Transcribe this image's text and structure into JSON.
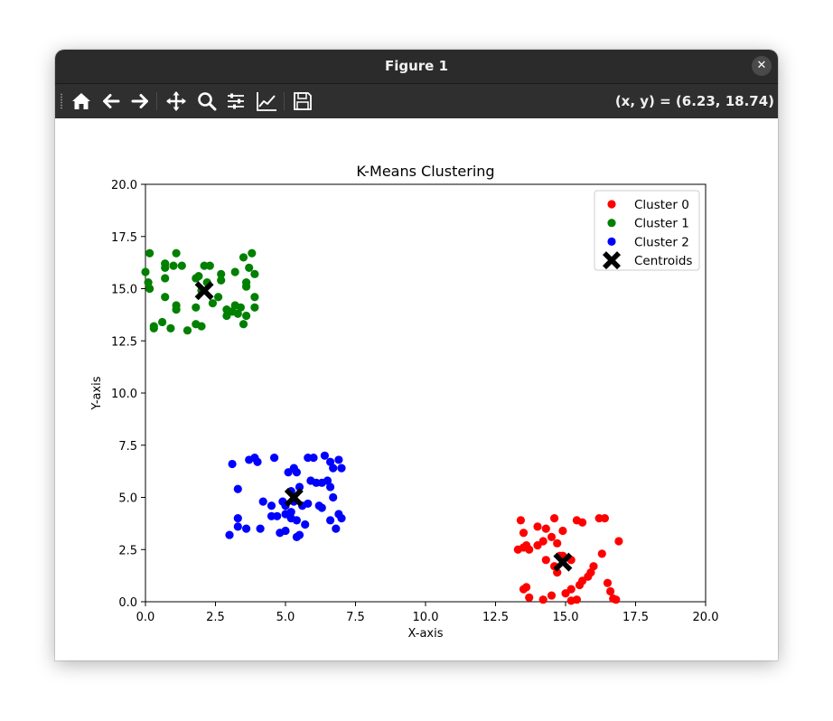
{
  "window": {
    "title": "Figure 1",
    "close_glyph": "✕"
  },
  "toolbar": {
    "tools": [
      {
        "name": "home-icon"
      },
      {
        "name": "back-arrow-icon"
      },
      {
        "name": "forward-arrow-icon"
      },
      {
        "name": "pan-icon"
      },
      {
        "name": "zoom-icon"
      },
      {
        "name": "configure-subplots-icon"
      },
      {
        "name": "edit-axis-icon"
      },
      {
        "name": "save-icon"
      }
    ],
    "coords": "(x, y) = (6.23, 18.74)"
  },
  "chart_data": {
    "type": "scatter",
    "title": "K-Means Clustering",
    "xlabel": "X-axis",
    "ylabel": "Y-axis",
    "xlim": [
      0,
      20
    ],
    "ylim": [
      0,
      20
    ],
    "xticks": [
      0,
      2.5,
      5,
      7.5,
      10,
      12.5,
      15,
      17.5,
      20
    ],
    "yticks": [
      0,
      2.5,
      5,
      7.5,
      10,
      12.5,
      15,
      17.5,
      20
    ],
    "xtick_labels": [
      "0.0",
      "2.5",
      "5.0",
      "7.5",
      "10.0",
      "12.5",
      "15.0",
      "17.5",
      "20.0"
    ],
    "ytick_labels": [
      "0.0",
      "2.5",
      "5.0",
      "7.5",
      "10.0",
      "12.5",
      "15.0",
      "17.5",
      "20.0"
    ],
    "grid": false,
    "legend_position": "top-right",
    "series": [
      {
        "name": "Cluster 0",
        "color": "#ff0000",
        "marker": "circle",
        "points": [
          [
            13.4,
            3.9
          ],
          [
            13.5,
            3.3
          ],
          [
            14.0,
            3.6
          ],
          [
            14.3,
            3.5
          ],
          [
            14.6,
            4.0
          ],
          [
            14.9,
            3.4
          ],
          [
            13.3,
            2.5
          ],
          [
            13.5,
            2.6
          ],
          [
            13.7,
            2.5
          ],
          [
            14.2,
            2.9
          ],
          [
            14.5,
            3.1
          ],
          [
            14.7,
            2.8
          ],
          [
            15.4,
            3.9
          ],
          [
            15.6,
            3.8
          ],
          [
            16.2,
            4.0
          ],
          [
            16.4,
            4.0
          ],
          [
            16.3,
            2.3
          ],
          [
            16.9,
            2.9
          ],
          [
            14.0,
            2.7
          ],
          [
            14.3,
            2.0
          ],
          [
            14.8,
            2.2
          ],
          [
            14.6,
            1.7
          ],
          [
            14.7,
            1.4
          ],
          [
            15.2,
            2.0
          ],
          [
            15.6,
            1.0
          ],
          [
            15.8,
            1.2
          ],
          [
            15.9,
            1.4
          ],
          [
            16.0,
            1.7
          ],
          [
            16.5,
            0.9
          ],
          [
            16.6,
            0.5
          ],
          [
            16.7,
            0.15
          ],
          [
            16.8,
            0.1
          ],
          [
            15.2,
            0.6
          ],
          [
            15.0,
            0.4
          ],
          [
            15.4,
            0.1
          ],
          [
            15.2,
            0.05
          ],
          [
            14.5,
            0.3
          ],
          [
            14.2,
            0.1
          ],
          [
            13.7,
            0.2
          ],
          [
            13.6,
            0.7
          ],
          [
            13.5,
            0.6
          ],
          [
            15.5,
            0.8
          ],
          [
            14.9,
            2.2
          ],
          [
            13.6,
            2.7
          ]
        ]
      },
      {
        "name": "Cluster 1",
        "color": "#008000",
        "marker": "circle",
        "points": [
          [
            0.15,
            16.7
          ],
          [
            0.0,
            15.8
          ],
          [
            0.1,
            15.3
          ],
          [
            0.15,
            15.0
          ],
          [
            0.7,
            16.2
          ],
          [
            0.7,
            16.0
          ],
          [
            1.0,
            16.1
          ],
          [
            1.3,
            16.1
          ],
          [
            1.1,
            16.7
          ],
          [
            0.7,
            15.5
          ],
          [
            1.8,
            15.5
          ],
          [
            1.9,
            15.6
          ],
          [
            2.1,
            16.1
          ],
          [
            2.3,
            16.1
          ],
          [
            2.7,
            15.7
          ],
          [
            2.7,
            15.4
          ],
          [
            2.2,
            15.3
          ],
          [
            2.0,
            14.9
          ],
          [
            2.6,
            14.6
          ],
          [
            2.4,
            14.3
          ],
          [
            1.1,
            14.2
          ],
          [
            1.1,
            14.0
          ],
          [
            0.7,
            14.6
          ],
          [
            0.6,
            13.4
          ],
          [
            0.3,
            13.2
          ],
          [
            0.3,
            13.1
          ],
          [
            0.9,
            13.1
          ],
          [
            1.8,
            13.3
          ],
          [
            1.5,
            13.0
          ],
          [
            2.0,
            13.2
          ],
          [
            1.8,
            14.1
          ],
          [
            3.2,
            15.8
          ],
          [
            3.5,
            16.5
          ],
          [
            3.8,
            16.7
          ],
          [
            3.7,
            16.0
          ],
          [
            3.9,
            15.7
          ],
          [
            3.6,
            15.3
          ],
          [
            3.6,
            15.1
          ],
          [
            3.4,
            14.1
          ],
          [
            3.3,
            13.8
          ],
          [
            3.1,
            13.9
          ],
          [
            3.0,
            13.9
          ],
          [
            2.9,
            14.0
          ],
          [
            2.9,
            13.7
          ],
          [
            3.5,
            13.3
          ],
          [
            3.6,
            13.7
          ],
          [
            3.9,
            14.1
          ],
          [
            3.9,
            14.6
          ],
          [
            3.2,
            14.2
          ]
        ]
      },
      {
        "name": "Cluster 2",
        "color": "#0000ff",
        "marker": "circle",
        "points": [
          [
            3.1,
            6.6
          ],
          [
            3.7,
            6.8
          ],
          [
            3.9,
            6.9
          ],
          [
            4.0,
            6.7
          ],
          [
            4.6,
            6.9
          ],
          [
            5.1,
            6.2
          ],
          [
            5.3,
            6.4
          ],
          [
            5.4,
            6.2
          ],
          [
            5.8,
            6.9
          ],
          [
            6.0,
            6.9
          ],
          [
            6.4,
            7.0
          ],
          [
            6.6,
            6.7
          ],
          [
            6.7,
            6.4
          ],
          [
            6.9,
            6.8
          ],
          [
            7.0,
            6.4
          ],
          [
            3.3,
            5.4
          ],
          [
            5.2,
            5.3
          ],
          [
            5.5,
            5.5
          ],
          [
            5.9,
            5.8
          ],
          [
            6.1,
            5.7
          ],
          [
            6.3,
            5.7
          ],
          [
            6.5,
            5.8
          ],
          [
            6.6,
            5.5
          ],
          [
            6.7,
            5.0
          ],
          [
            5.3,
            4.8
          ],
          [
            5.6,
            4.6
          ],
          [
            5.8,
            4.7
          ],
          [
            6.2,
            4.6
          ],
          [
            6.3,
            4.5
          ],
          [
            4.2,
            4.8
          ],
          [
            4.5,
            4.6
          ],
          [
            4.9,
            4.8
          ],
          [
            5.0,
            4.6
          ],
          [
            4.5,
            4.1
          ],
          [
            4.7,
            4.1
          ],
          [
            5.0,
            4.2
          ],
          [
            5.2,
            4.3
          ],
          [
            5.4,
            3.9
          ],
          [
            5.7,
            3.7
          ],
          [
            6.6,
            3.9
          ],
          [
            6.9,
            4.2
          ],
          [
            7.0,
            4.0
          ],
          [
            6.8,
            3.5
          ],
          [
            3.3,
            4.0
          ],
          [
            3.3,
            3.6
          ],
          [
            3.6,
            3.5
          ],
          [
            4.1,
            3.5
          ],
          [
            3.0,
            3.2
          ],
          [
            4.8,
            3.3
          ],
          [
            5.0,
            3.4
          ],
          [
            5.5,
            3.2
          ],
          [
            5.4,
            3.1
          ],
          [
            5.2,
            4.0
          ]
        ]
      },
      {
        "name": "Centroids",
        "color": "#000000",
        "marker": "x",
        "points": [
          [
            14.9,
            1.9
          ],
          [
            2.1,
            14.9
          ],
          [
            5.3,
            5.0
          ]
        ]
      }
    ]
  }
}
